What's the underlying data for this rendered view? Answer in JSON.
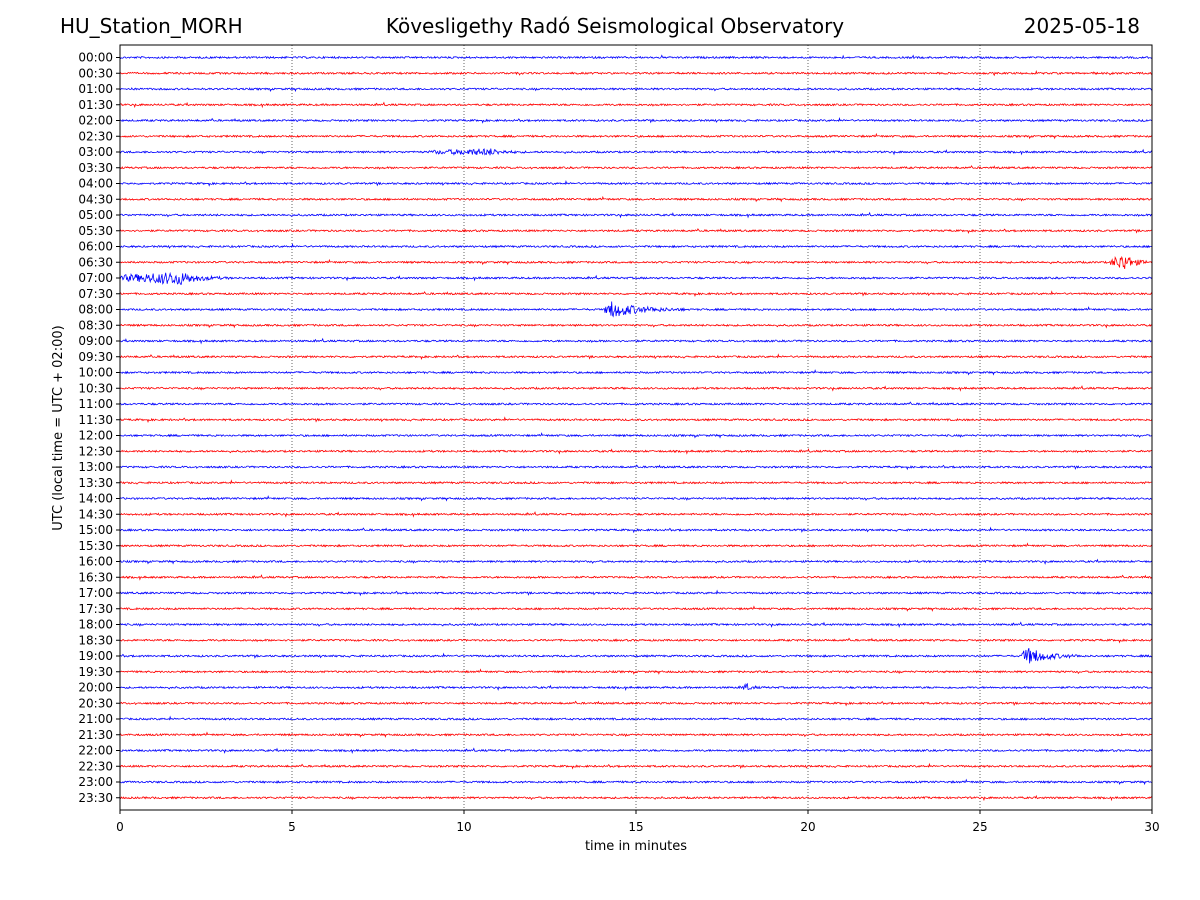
{
  "header": {
    "station": "HU_Station_MORH",
    "title": "Kövesligethy Radó Seismological Observatory",
    "date": "2025-05-18"
  },
  "chart_data": {
    "type": "line",
    "title": "Kövesligethy Radó Seismological Observatory",
    "xlabel": "time in minutes",
    "ylabel": "UTC (local time = UTC + 02:00)",
    "xlim": [
      0,
      30
    ],
    "x_ticks": [
      0,
      5,
      10,
      15,
      20,
      25,
      30
    ],
    "grid_x": true,
    "colors": {
      "even": "#0000ff",
      "odd": "#ff0000"
    },
    "rows": [
      "00:00",
      "00:30",
      "01:00",
      "01:30",
      "02:00",
      "02:30",
      "03:00",
      "03:30",
      "04:00",
      "04:30",
      "05:00",
      "05:30",
      "06:00",
      "06:30",
      "07:00",
      "07:30",
      "08:00",
      "08:30",
      "09:00",
      "09:30",
      "10:00",
      "10:30",
      "11:00",
      "11:30",
      "12:00",
      "12:30",
      "13:00",
      "13:30",
      "14:00",
      "14:30",
      "15:00",
      "15:30",
      "16:00",
      "16:30",
      "17:00",
      "17:30",
      "18:00",
      "18:30",
      "19:00",
      "19:30",
      "20:00",
      "20:30",
      "21:00",
      "21:30",
      "22:00",
      "22:30",
      "23:00",
      "23:30"
    ],
    "events": [
      {
        "row": "03:00",
        "start": 9.0,
        "peak": 10.8,
        "end": 11.8,
        "amp": 0.35
      },
      {
        "row": "06:30",
        "start": 28.8,
        "peak": 29.2,
        "end": 30.0,
        "amp": 1.0
      },
      {
        "row": "07:00",
        "start": 0.0,
        "peak": 1.8,
        "end": 3.2,
        "amp": 0.75
      },
      {
        "row": "08:00",
        "start": 14.1,
        "peak": 14.3,
        "end": 16.5,
        "amp": 1.0
      },
      {
        "row": "19:00",
        "start": 26.2,
        "peak": 26.4,
        "end": 28.0,
        "amp": 1.0
      },
      {
        "row": "20:00",
        "start": 18.1,
        "peak": 18.2,
        "end": 18.6,
        "amp": 0.5
      }
    ]
  }
}
